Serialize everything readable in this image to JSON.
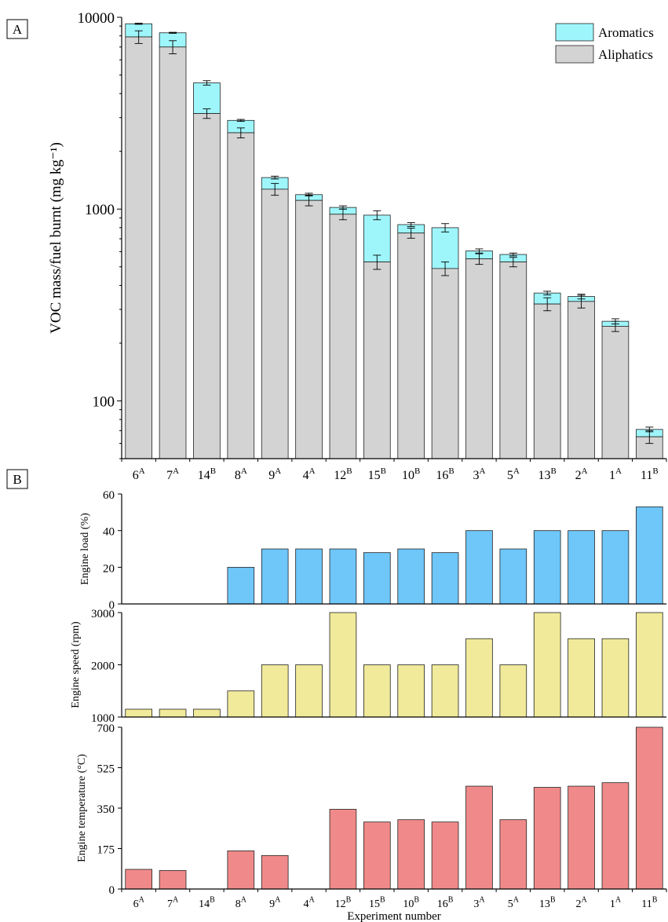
{
  "panel_labels": [
    "A",
    "B"
  ],
  "chart_data": [
    {
      "type": "bar",
      "stacked": true,
      "log_scale": true,
      "ylabel": "VOC mass/fuel burnt (mg kg⁻¹)",
      "ylim": [
        50,
        10000
      ],
      "yticks": [
        "100",
        "1000",
        "10000"
      ],
      "categories": [
        {
          "num": "6",
          "sup": "A"
        },
        {
          "num": "7",
          "sup": "A"
        },
        {
          "num": "14",
          "sup": "B"
        },
        {
          "num": "8",
          "sup": "A"
        },
        {
          "num": "9",
          "sup": "A"
        },
        {
          "num": "4",
          "sup": "A"
        },
        {
          "num": "12",
          "sup": "B"
        },
        {
          "num": "15",
          "sup": "B"
        },
        {
          "num": "10",
          "sup": "B"
        },
        {
          "num": "16",
          "sup": "B"
        },
        {
          "num": "3",
          "sup": "A"
        },
        {
          "num": "5",
          "sup": "A"
        },
        {
          "num": "13",
          "sup": "B"
        },
        {
          "num": "2",
          "sup": "A"
        },
        {
          "num": "1",
          "sup": "A"
        },
        {
          "num": "11",
          "sup": "B"
        }
      ],
      "series": [
        {
          "name": "Aliphatics",
          "color": "#d3d3d3",
          "values": [
            7900,
            7000,
            3150,
            2500,
            1270,
            1110,
            940,
            530,
            750,
            490,
            550,
            530,
            320,
            330,
            245,
            65
          ],
          "err": [
            600,
            550,
            180,
            150,
            90,
            70,
            60,
            45,
            45,
            40,
            35,
            30,
            25,
            25,
            15,
            5
          ]
        },
        {
          "name": "Aromatics",
          "color": "#9ef6fb",
          "totals": [
            9250,
            8300,
            4550,
            2900,
            1460,
            1190,
            1020,
            930,
            830,
            800,
            605,
            580,
            365,
            350,
            260,
            71
          ],
          "err": [
            60,
            50,
            120,
            35,
            25,
            20,
            20,
            50,
            20,
            40,
            15,
            10,
            8,
            10,
            8,
            2
          ]
        }
      ],
      "legend_position": "top-right"
    },
    {
      "type": "bar",
      "ylabel": "Engine load (%)",
      "ylim": [
        0,
        60
      ],
      "yticks": [
        "0",
        "20",
        "40",
        "60"
      ],
      "color": "#6ec6f9",
      "values": [
        0,
        0,
        0,
        20,
        30,
        30,
        30,
        28,
        30,
        28,
        40,
        30,
        40,
        40,
        40,
        53
      ]
    },
    {
      "type": "bar",
      "ylabel": "Engine speed (rpm)",
      "ylim": [
        1000,
        3000
      ],
      "yticks": [
        "1000",
        "2000",
        "3000"
      ],
      "color": "#f0ea9a",
      "values": [
        1150,
        1150,
        1150,
        1500,
        2000,
        2000,
        3000,
        2000,
        2000,
        2000,
        2500,
        2000,
        3000,
        2500,
        2500,
        3000
      ]
    },
    {
      "type": "bar",
      "ylabel": "Engine temperature (°C)",
      "ylim": [
        0,
        700
      ],
      "yticks": [
        "0",
        "175",
        "350",
        "525",
        "700"
      ],
      "color": "#f08a8a",
      "values": [
        85,
        80,
        0,
        165,
        145,
        0,
        345,
        290,
        300,
        290,
        445,
        300,
        440,
        445,
        460,
        700
      ],
      "xlabel": "Experiment number"
    }
  ]
}
